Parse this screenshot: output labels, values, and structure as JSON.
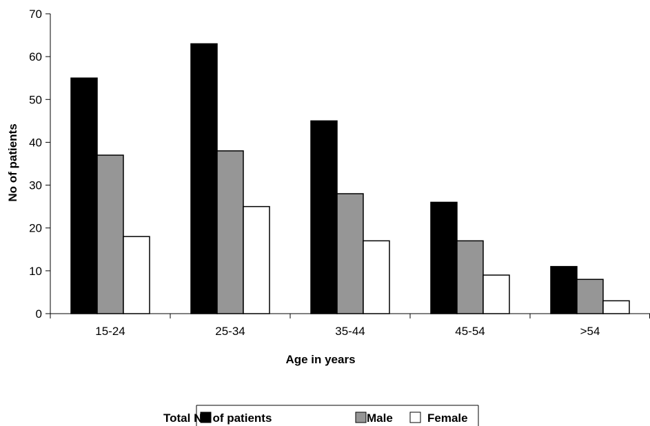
{
  "chart_data": {
    "type": "bar",
    "categories": [
      "15-24",
      "25-34",
      "35-44",
      "45-54",
      ">54"
    ],
    "series": [
      {
        "name": "Total No of patients",
        "values": [
          55,
          63,
          45,
          26,
          11
        ],
        "color": "#000000"
      },
      {
        "name": "Male",
        "values": [
          37,
          38,
          28,
          17,
          8
        ],
        "color": "#969696"
      },
      {
        "name": "Female",
        "values": [
          18,
          25,
          17,
          9,
          3
        ],
        "color": "#ffffff"
      }
    ],
    "title": "",
    "xlabel": "Age in years",
    "ylabel": "No of patients",
    "ylim": [
      0,
      70
    ],
    "yticks": [
      0,
      10,
      20,
      30,
      40,
      50,
      60,
      70
    ],
    "grid": false,
    "legend_position": "bottom"
  }
}
